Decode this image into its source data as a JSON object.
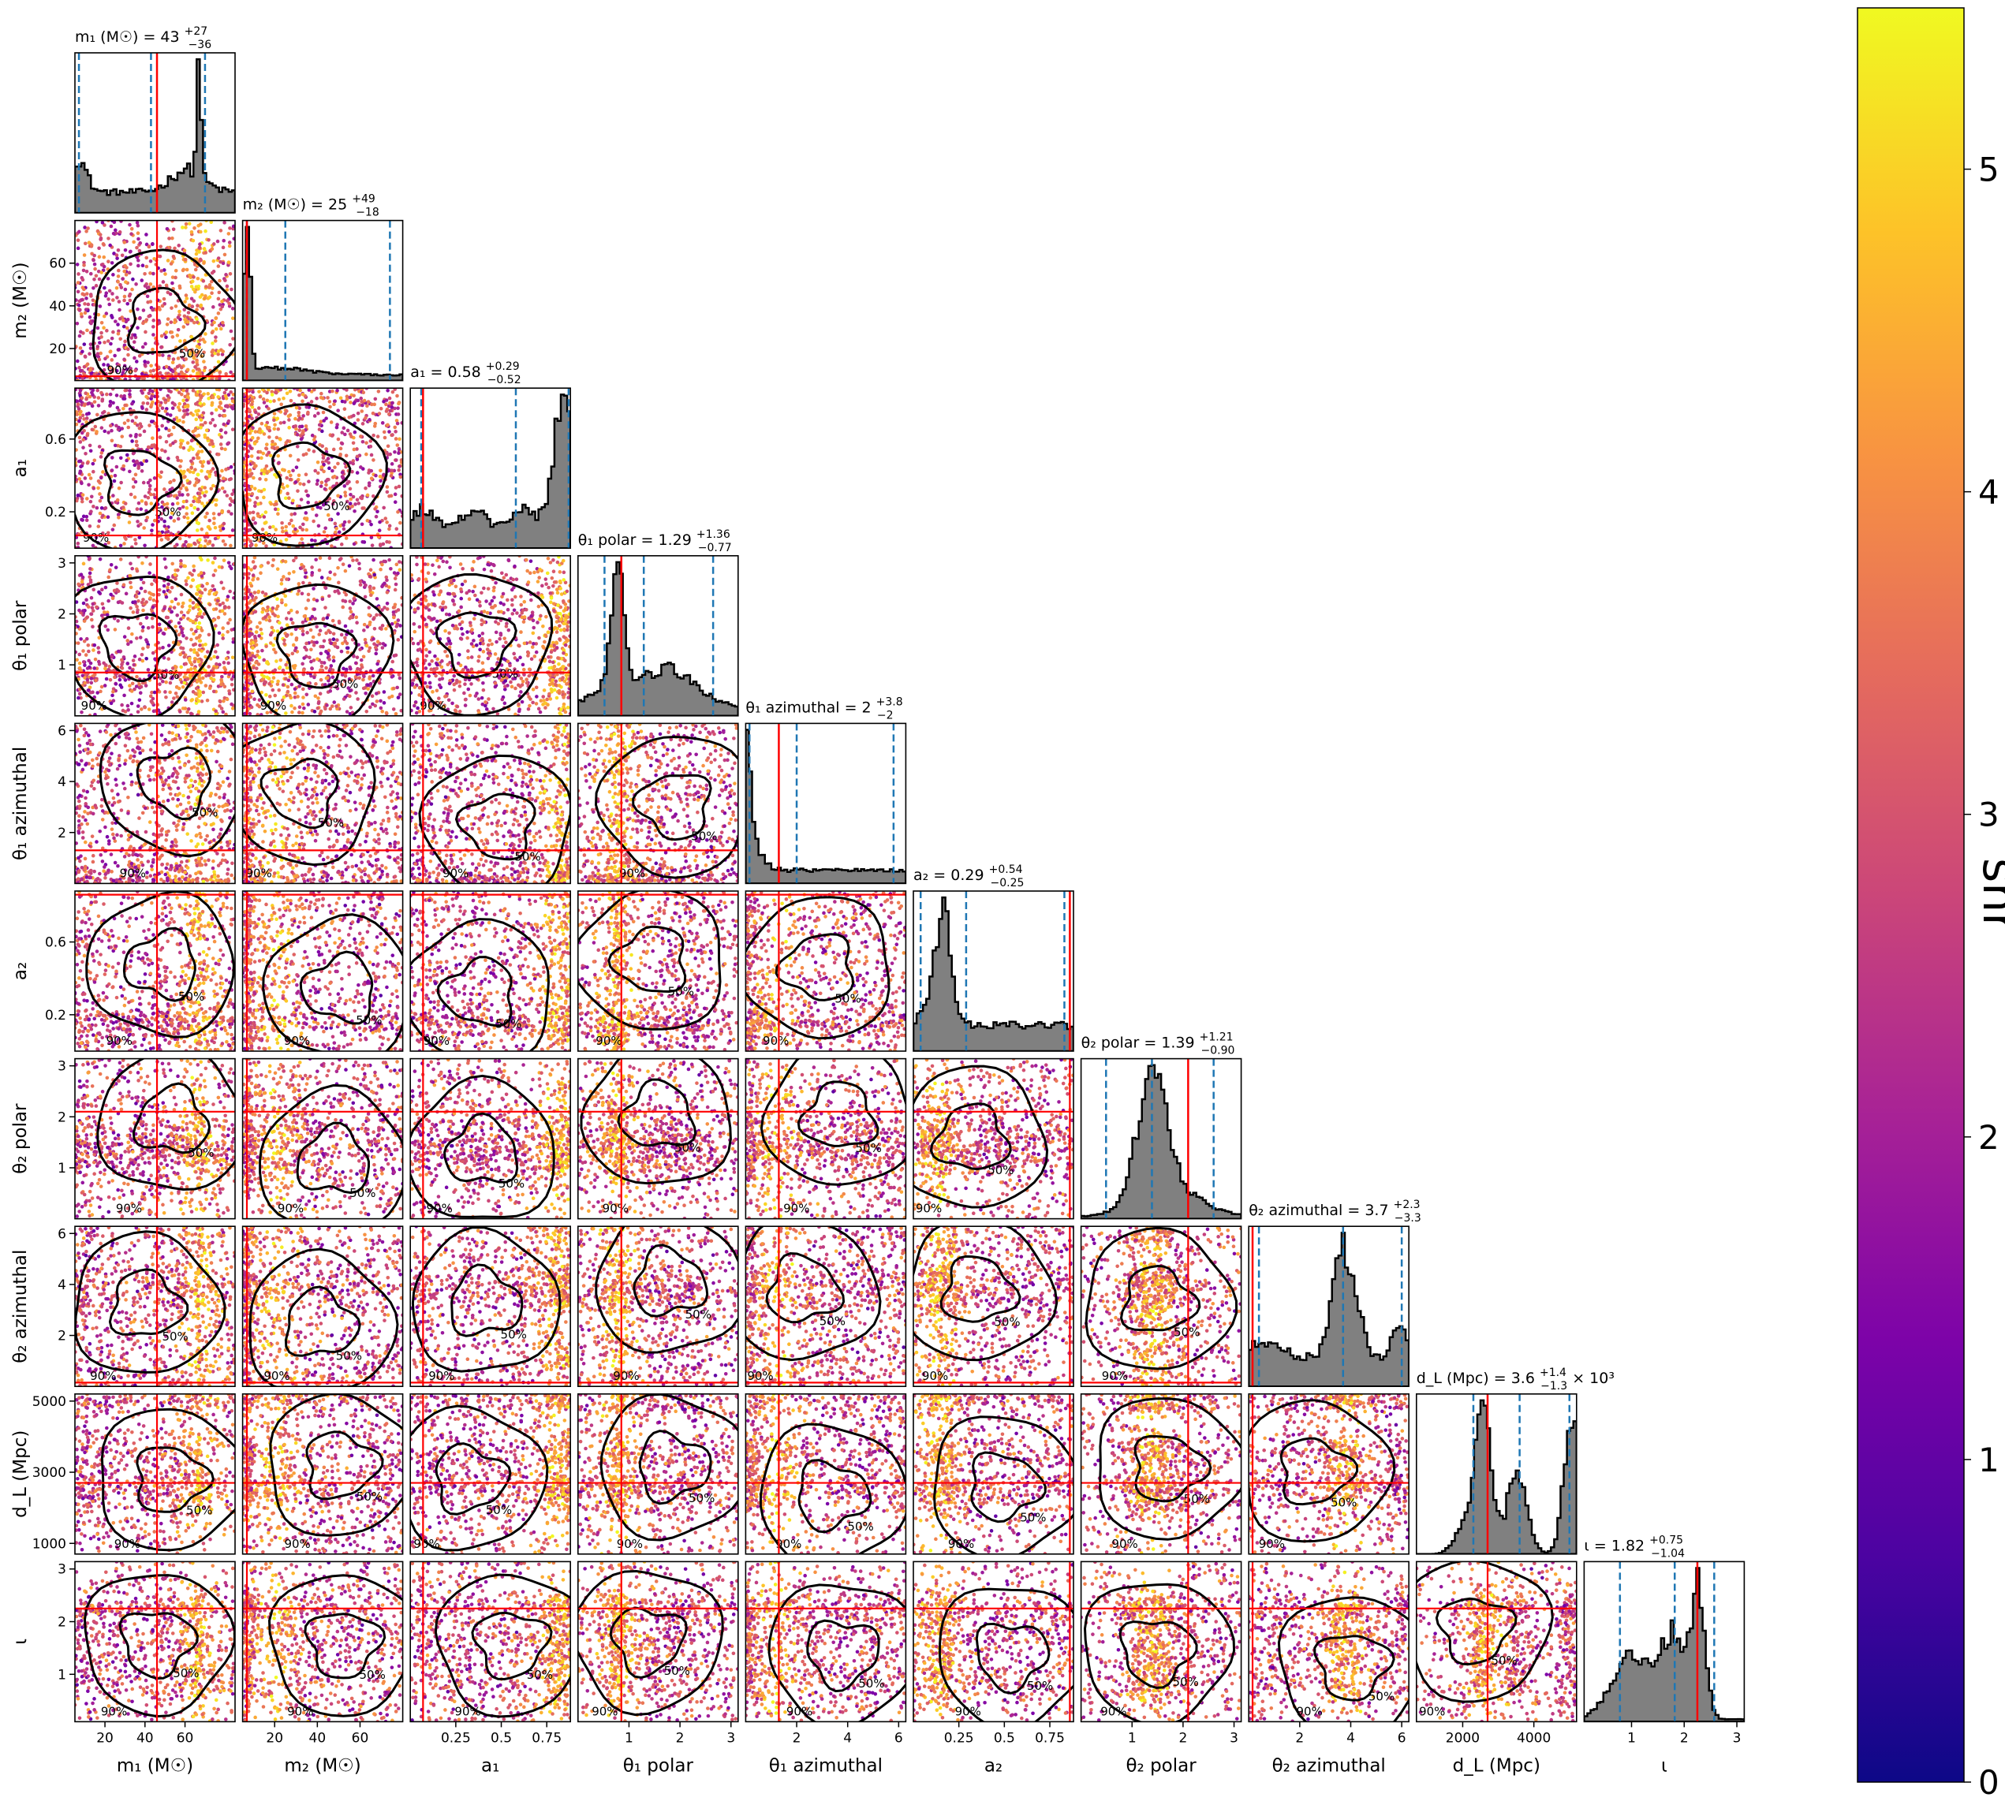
{
  "figure": {
    "title": "",
    "colorbar": {
      "label": "snr",
      "range": [
        0,
        5.5
      ],
      "ticks": [
        "0",
        "1",
        "2",
        "3",
        "4",
        "5"
      ],
      "colormap": "plasma",
      "stops": [
        "#0d0887",
        "#4b03a1",
        "#7d03a8",
        "#a82296",
        "#cb4679",
        "#e56b5d",
        "#f89441",
        "#fdc328",
        "#f0f921"
      ]
    },
    "colors": {
      "histogram_fill": "#808080",
      "histogram_edge": "#000000",
      "truth_line": "#ff0000",
      "quantile_line": "#1f77b4",
      "contour": "#000000"
    }
  },
  "chart_data": {
    "type": "corner",
    "parameters": [
      {
        "key": "m1",
        "axis_label": "m₁ (M☉)",
        "title": "m₁ (M☉) = 43",
        "title_sup": "+27",
        "title_sub": "−36",
        "range": [
          5,
          85
        ],
        "ticks": [
          20,
          40,
          60
        ],
        "truth": 46,
        "quantiles": [
          7,
          43,
          70
        ],
        "density": "m1"
      },
      {
        "key": "m2",
        "axis_label": "m₂ (M☉)",
        "title": "m₂ (M☉) = 25",
        "title_sup": "+49",
        "title_sub": "−18",
        "range": [
          5,
          80
        ],
        "ticks": [
          20,
          40,
          60
        ],
        "truth": 7,
        "quantiles": [
          7,
          25,
          74
        ],
        "density": "m2"
      },
      {
        "key": "a1",
        "axis_label": "a₁",
        "title": "a₁ = 0.58",
        "title_sup": "+0.29",
        "title_sub": "−0.52",
        "range": [
          0,
          0.88
        ],
        "ticks": [
          0.25,
          0.5,
          0.75
        ],
        "tick_labels_y": [
          "0.2",
          "0.6"
        ],
        "tick_values_y": [
          0.2,
          0.6
        ],
        "truth": 0.07,
        "quantiles": [
          0.06,
          0.58,
          0.87
        ],
        "density": "a1"
      },
      {
        "key": "theta1_polar",
        "axis_label": "θ₁ polar",
        "title": "θ₁ polar = 1.29",
        "title_sup": "+1.36",
        "title_sub": "−0.77",
        "range": [
          0,
          3.14
        ],
        "ticks": [
          1,
          2,
          3
        ],
        "truth": 0.85,
        "quantiles": [
          0.52,
          1.29,
          2.65
        ],
        "density": "t1p"
      },
      {
        "key": "theta1_azimuthal",
        "axis_label": "θ₁ azimuthal",
        "title": "θ₁ azimuthal = 2",
        "title_sup": "+3.8",
        "title_sub": "−2",
        "range": [
          0,
          6.28
        ],
        "ticks": [
          2,
          4,
          6
        ],
        "truth": 1.3,
        "quantiles": [
          0.15,
          2.0,
          5.8
        ],
        "density": "t1a"
      },
      {
        "key": "a2",
        "axis_label": "a₂",
        "title": "a₂ = 0.29",
        "title_sup": "+0.54",
        "title_sub": "−0.25",
        "range": [
          0,
          0.88
        ],
        "ticks": [
          0.25,
          0.5,
          0.75
        ],
        "tick_labels_y": [
          "0.2",
          "0.6"
        ],
        "tick_values_y": [
          0.2,
          0.6
        ],
        "truth": 0.86,
        "quantiles": [
          0.04,
          0.29,
          0.83
        ],
        "density": "a2"
      },
      {
        "key": "theta2_polar",
        "axis_label": "θ₂ polar",
        "title": "θ₂ polar = 1.39",
        "title_sup": "+1.21",
        "title_sub": "−0.90",
        "range": [
          0,
          3.14
        ],
        "ticks": [
          1,
          2,
          3
        ],
        "truth": 2.1,
        "quantiles": [
          0.49,
          1.39,
          2.6
        ],
        "density": "t2p"
      },
      {
        "key": "theta2_azimuthal",
        "axis_label": "θ₂ azimuthal",
        "title": "θ₂ azimuthal = 3.7",
        "title_sup": "+2.3",
        "title_sub": "−3.3",
        "range": [
          0,
          6.28
        ],
        "ticks": [
          2,
          4,
          6
        ],
        "truth": 0.15,
        "quantiles": [
          0.4,
          3.7,
          6.0
        ],
        "density": "t2a"
      },
      {
        "key": "dL",
        "axis_label": "d_L (Mpc)",
        "title": "d_L (Mpc) = 3.6",
        "title_sup": "+1.4",
        "title_sub": "−1.3",
        "title_suffix": "× 10³",
        "range": [
          700,
          5200
        ],
        "ticks": [
          2000,
          4000
        ],
        "tick_labels_y": [
          "1000",
          "3000",
          "5000"
        ],
        "tick_values_y": [
          1000,
          3000,
          5000
        ],
        "truth": 2700,
        "quantiles": [
          2300,
          3600,
          5000
        ],
        "density": "dL"
      },
      {
        "key": "iota",
        "axis_label": "ι",
        "title": "ι = 1.82",
        "title_sup": "+0.75",
        "title_sub": "−1.04",
        "range": [
          0.1,
          3.14
        ],
        "ticks": [
          1,
          2,
          3
        ],
        "truth": 2.25,
        "quantiles": [
          0.78,
          1.82,
          2.57
        ],
        "density": "iota"
      }
    ],
    "contour_levels": [
      "50%",
      "90%"
    ]
  }
}
